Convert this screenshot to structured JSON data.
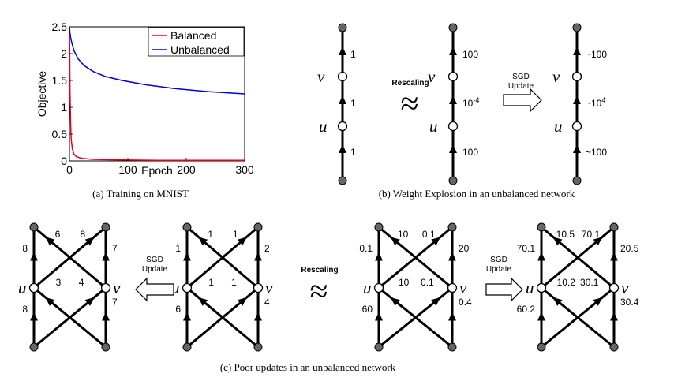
{
  "chart_data": {
    "type": "line",
    "xlabel": "Epoch",
    "ylabel": "Objective",
    "xlim": [
      0,
      300
    ],
    "ylim": [
      0,
      2.5
    ],
    "xticks": [
      "0",
      "100",
      "200",
      "300"
    ],
    "yticks": [
      "0",
      "0.5",
      "1",
      "1.5",
      "2",
      "2.5"
    ],
    "grid": false,
    "legend": "top-right",
    "series": [
      {
        "name": "Balanced",
        "color": "#e8001c",
        "x": [
          0,
          0.5,
          1,
          2,
          3,
          5,
          8,
          12,
          20,
          40,
          80,
          150,
          300
        ],
        "y": [
          2.5,
          1.9,
          1.3,
          0.7,
          0.4,
          0.22,
          0.12,
          0.08,
          0.05,
          0.03,
          0.02,
          0.01,
          0.01
        ]
      },
      {
        "name": "Unbalanced",
        "color": "#0000d8",
        "x": [
          0,
          0.5,
          1,
          2,
          4,
          8,
          15,
          25,
          40,
          60,
          90,
          130,
          180,
          240,
          300
        ],
        "y": [
          2.5,
          2.43,
          2.38,
          2.3,
          2.2,
          2.05,
          1.9,
          1.78,
          1.67,
          1.58,
          1.5,
          1.42,
          1.35,
          1.29,
          1.25
        ]
      }
    ]
  },
  "captions": {
    "a": "(a) Training on MNIST",
    "b": "(b) Weight Explosion in an unbalanced network",
    "c": "(c) Poor updates in an unbalanced network"
  },
  "vars": {
    "u": "u",
    "v": "v"
  },
  "ops": {
    "rescaling": "Rescaling",
    "sgd_line1": "SGD",
    "sgd_line2": "Update",
    "tilde": "≈"
  },
  "chains": {
    "c1": {
      "top": "1",
      "mid": "1",
      "bot": "1"
    },
    "c2": {
      "top": "100",
      "mid": "10",
      "mid_exp": "-4",
      "bot": "100"
    },
    "c3": {
      "top": "~100",
      "mid": "~10",
      "mid_exp": "4",
      "bot": "~100"
    }
  },
  "networks": {
    "n1": {
      "tl": "8",
      "tc1": "6",
      "tc2": "8",
      "tr": "7",
      "ml": "3",
      "mr": "4",
      "bl": "8",
      "br": "7"
    },
    "n2": {
      "tl": "1",
      "tc1": "1",
      "tc2": "1",
      "tr": "2",
      "ml": "1",
      "mr": "1",
      "bl": "6",
      "br": "4"
    },
    "n3": {
      "tl": "0.1",
      "tc1": "10",
      "tc2": "0.1",
      "tr": "20",
      "ml": "10",
      "mr": "0.1",
      "bl": "60",
      "br": "0.4"
    },
    "n4": {
      "tl": "70.1",
      "tc1": "10.5",
      "tc2": "70.1",
      "tr": "20.5",
      "ml": "10.2",
      "mr": "30.1",
      "bl": "60.2",
      "br": "30.4"
    }
  }
}
